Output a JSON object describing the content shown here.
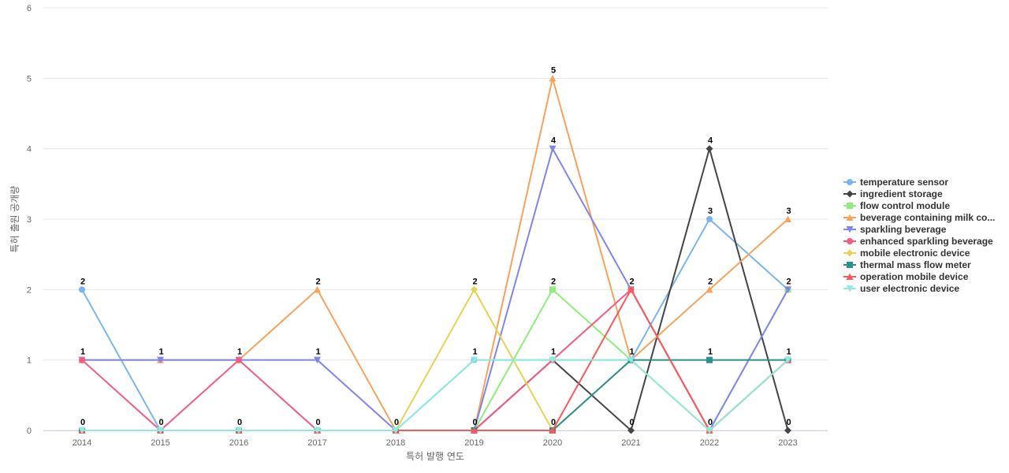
{
  "chart_data": {
    "type": "line",
    "title": "",
    "xlabel": "특허 발행 연도",
    "ylabel": "특허 출원 공개량",
    "x": [
      "2014",
      "2015",
      "2016",
      "2017",
      "2018",
      "2019",
      "2020",
      "2021",
      "2022",
      "2023"
    ],
    "ylim": [
      0,
      6
    ],
    "yticks": [
      0,
      1,
      2,
      3,
      4,
      5,
      6
    ],
    "grid": true,
    "legend_position": "right",
    "series": [
      {
        "name": "temperature sensor",
        "display_name": "temperature sensor",
        "color": "#7cb5ec",
        "marker": "circle",
        "values": [
          2,
          0,
          0,
          0,
          0,
          1,
          1,
          1,
          3,
          2
        ]
      },
      {
        "name": "ingredient storage",
        "display_name": "ingredient storage",
        "color": "#434348",
        "marker": "diamond",
        "values": [
          0,
          0,
          0,
          0,
          0,
          0,
          1,
          0,
          4,
          0
        ]
      },
      {
        "name": "flow control module",
        "display_name": "flow control module",
        "color": "#90ed7d",
        "marker": "square",
        "values": [
          0,
          0,
          0,
          0,
          0,
          0,
          2,
          1,
          0,
          2
        ]
      },
      {
        "name": "beverage containing milk co...",
        "display_name": "beverage containing milk co...",
        "color": "#f7a35c",
        "marker": "triangle",
        "values": [
          1,
          1,
          1,
          2,
          0,
          0,
          5,
          1,
          2,
          3
        ]
      },
      {
        "name": "sparkling beverage",
        "display_name": "sparkling beverage",
        "color": "#8085e9",
        "marker": "triangle-down",
        "values": [
          1,
          1,
          1,
          1,
          0,
          0,
          4,
          2,
          0,
          2
        ]
      },
      {
        "name": "enhanced sparkling beverage",
        "display_name": "enhanced sparkling beverage",
        "color": "#f15c80",
        "marker": "circle",
        "values": [
          1,
          0,
          1,
          0,
          0,
          0,
          1,
          2,
          0,
          1
        ]
      },
      {
        "name": "mobile electronic device",
        "display_name": "mobile electronic device",
        "color": "#e4d354",
        "marker": "diamond",
        "values": [
          0,
          0,
          0,
          0,
          0,
          2,
          0,
          1,
          0,
          1
        ]
      },
      {
        "name": "thermal mass flow meter",
        "display_name": "thermal mass flow meter",
        "color": "#2b908f",
        "marker": "square",
        "values": [
          0,
          0,
          0,
          0,
          0,
          0,
          0,
          1,
          1,
          1
        ]
      },
      {
        "name": "operation mobile device",
        "display_name": "operation mobile device",
        "color": "#f45b5b",
        "marker": "triangle",
        "values": [
          0,
          0,
          0,
          0,
          0,
          0,
          0,
          2,
          0,
          1
        ]
      },
      {
        "name": "user electronic device",
        "display_name": "user electronic device",
        "color": "#91e8e1",
        "marker": "triangle-down",
        "values": [
          0,
          0,
          0,
          0,
          0,
          1,
          1,
          1,
          0,
          1
        ]
      }
    ],
    "data_labels": [
      {
        "x": "2014",
        "text": "2",
        "value": 2
      },
      {
        "x": "2014",
        "text": "1",
        "value": 1
      },
      {
        "x": "2014",
        "text": "0",
        "value": 0
      },
      {
        "x": "2015",
        "text": "1",
        "value": 1
      },
      {
        "x": "2015",
        "text": "0",
        "value": 0
      },
      {
        "x": "2016",
        "text": "1",
        "value": 1
      },
      {
        "x": "2016",
        "text": "0",
        "value": 0
      },
      {
        "x": "2017",
        "text": "2",
        "value": 2
      },
      {
        "x": "2017",
        "text": "1",
        "value": 1
      },
      {
        "x": "2017",
        "text": "0",
        "value": 0
      },
      {
        "x": "2018",
        "text": "0",
        "value": 0
      },
      {
        "x": "2019",
        "text": "2",
        "value": 2
      },
      {
        "x": "2019",
        "text": "1",
        "value": 1
      },
      {
        "x": "2019",
        "text": "0",
        "value": 0
      },
      {
        "x": "2020",
        "text": "5",
        "value": 5
      },
      {
        "x": "2020",
        "text": "4",
        "value": 4
      },
      {
        "x": "2020",
        "text": "2",
        "value": 2
      },
      {
        "x": "2020",
        "text": "1",
        "value": 1
      },
      {
        "x": "2020",
        "text": "0",
        "value": 0
      },
      {
        "x": "2021",
        "text": "2",
        "value": 2
      },
      {
        "x": "2021",
        "text": "1",
        "value": 1
      },
      {
        "x": "2021",
        "text": "0",
        "value": 0
      },
      {
        "x": "2022",
        "text": "4",
        "value": 4
      },
      {
        "x": "2022",
        "text": "3",
        "value": 3
      },
      {
        "x": "2022",
        "text": "2",
        "value": 2
      },
      {
        "x": "2022",
        "text": "1",
        "value": 1
      },
      {
        "x": "2022",
        "text": "0",
        "value": 0
      },
      {
        "x": "2023",
        "text": "3",
        "value": 3
      },
      {
        "x": "2023",
        "text": "2",
        "value": 2
      },
      {
        "x": "2023",
        "text": "1",
        "value": 1
      },
      {
        "x": "2023",
        "text": "0",
        "value": 0
      }
    ]
  }
}
